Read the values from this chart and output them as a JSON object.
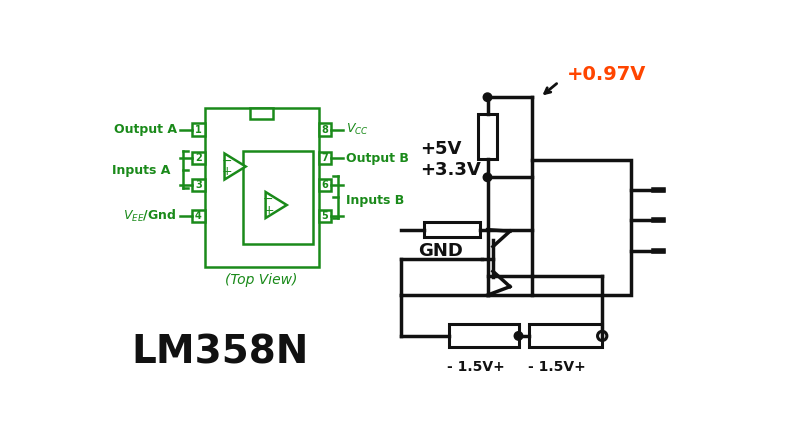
{
  "bg": "#ffffff",
  "G": "#1a8a1a",
  "B": "#111111",
  "OR": "#ff4500",
  "lm358n": "LM358N",
  "top_view": "(Top View)",
  "output_a": "Output A",
  "inputs_a": "Inputs A",
  "vee_gnd": "$V_{EE}$/Gnd",
  "vcc": "$V_{CC}$",
  "output_b": "Output B",
  "inputs_b": "Inputs B",
  "plus5v": "+5V",
  "plus33v": "+3.3V",
  "gnd": "GND",
  "voltage": "+0.97V",
  "bat1": "- 1.5V+",
  "bat2": "- 1.5V+"
}
